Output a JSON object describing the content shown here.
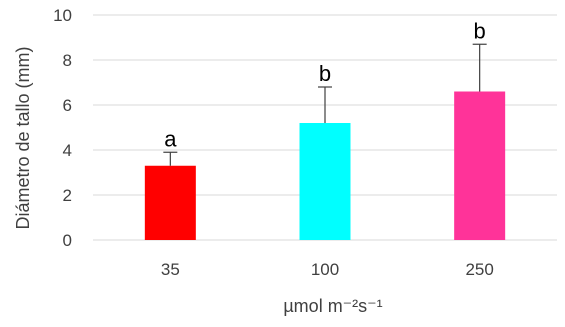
{
  "chart_data": {
    "type": "bar",
    "categories": [
      "35",
      "100",
      "250"
    ],
    "values": [
      3.3,
      5.2,
      6.6
    ],
    "error_plus": [
      0.6,
      1.6,
      2.1
    ],
    "letters": [
      "a",
      "b",
      "b"
    ],
    "colors": [
      "#ff0000",
      "#00ffff",
      "#ff3399"
    ],
    "xlabel": "µmol m⁻²s⁻¹",
    "ylabel": "Diámetro de tallo (mm)",
    "ylim": [
      0,
      10
    ],
    "yticks": [
      0,
      2,
      4,
      6,
      8,
      10
    ],
    "grid": true,
    "legend": "none"
  }
}
